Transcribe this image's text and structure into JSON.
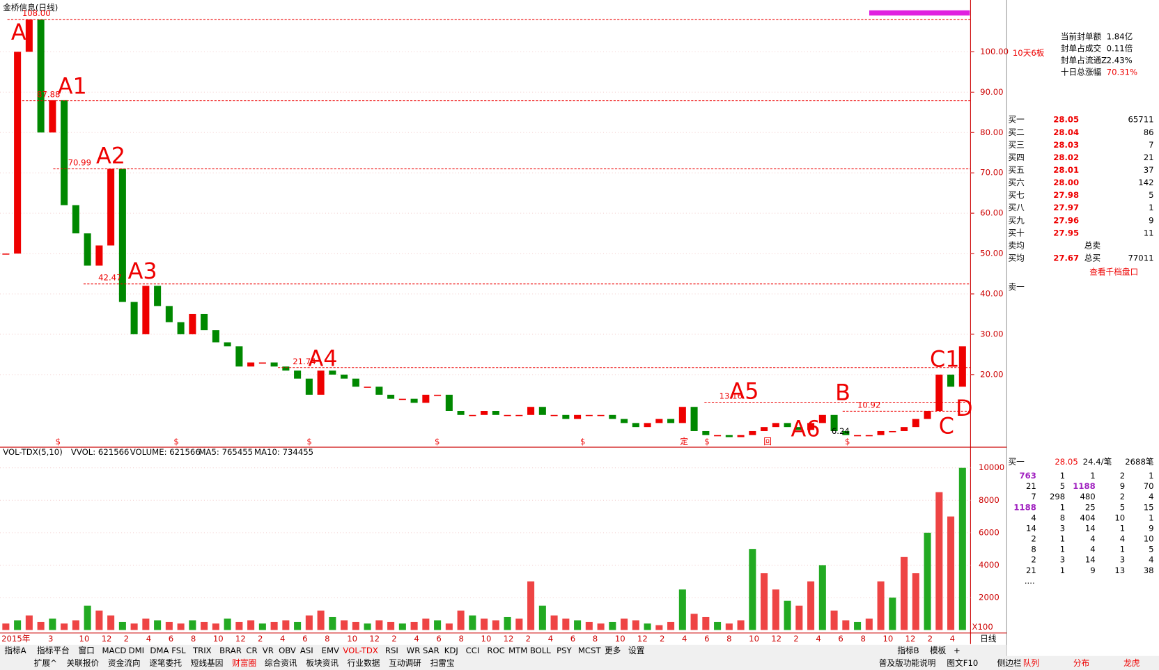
{
  "header": {
    "title": "金桥信息(日线)"
  },
  "price_chart": {
    "ylim": [
      2.75,
      112.84
    ],
    "yticks": [
      {
        "value": 20,
        "label": "20.00"
      },
      {
        "value": 30,
        "label": "30.00"
      },
      {
        "value": 40,
        "label": "40.00"
      },
      {
        "value": 50,
        "label": "50.00"
      },
      {
        "value": 60,
        "label": "60.00"
      },
      {
        "value": 70,
        "label": "70.00"
      },
      {
        "value": 80,
        "label": "80.00"
      },
      {
        "value": 90,
        "label": "90.00"
      },
      {
        "value": 100,
        "label": "100.00"
      }
    ],
    "values": [
      50,
      100,
      108,
      80,
      88,
      62,
      55,
      47,
      52,
      71,
      38,
      30,
      42,
      37,
      33,
      30,
      35,
      31,
      28,
      27,
      22,
      23,
      23,
      22,
      21,
      19,
      15,
      21,
      20,
      19,
      17,
      17,
      15,
      14,
      14,
      13,
      15,
      15,
      11,
      10,
      10,
      11,
      10,
      10,
      10,
      12,
      10,
      10,
      9,
      10,
      10,
      10,
      9,
      8,
      7,
      8,
      9,
      8,
      12,
      6,
      5,
      5,
      4.5,
      5,
      6,
      7,
      8,
      7,
      6.3,
      8,
      10,
      6,
      5,
      5,
      5,
      6,
      6,
      7,
      9,
      11,
      20,
      17,
      27
    ],
    "levels": [
      {
        "value": 108,
        "label": "108.00"
      },
      {
        "value": 87.88,
        "label": "87.88"
      },
      {
        "value": 70.99,
        "label": "70.99"
      },
      {
        "value": 42.47,
        "label": "42.47"
      },
      {
        "value": 21.74,
        "label": "21.74"
      },
      {
        "value": 13.16,
        "label": "13.16"
      },
      {
        "value": 10.92,
        "label": "10.92"
      }
    ],
    "annotations": [
      "A",
      "A1",
      "A2",
      "A3",
      "A4",
      "A5",
      "A6",
      "B",
      "C",
      "C1",
      "D"
    ],
    "low_label": {
      "value": 6.24,
      "label": "6.24"
    },
    "event_markers": [
      "$",
      "$",
      "$",
      "$",
      "$",
      "定",
      "$",
      "回",
      "$"
    ]
  },
  "volume_chart": {
    "header": [
      "VOL-TDX(5,10)",
      "VVOL: 621566",
      "VOLUME: 621566",
      "MA5: 765455",
      "MA10: 734455"
    ],
    "ylim": [
      0,
      11000
    ],
    "yticks": [
      2000,
      4000,
      6000,
      8000,
      10000
    ],
    "unit": "X100",
    "values": [
      400,
      600,
      900,
      500,
      700,
      400,
      600,
      1500,
      1200,
      900,
      500,
      400,
      700,
      600,
      500,
      400,
      600,
      500,
      400,
      700,
      500,
      600,
      400,
      500,
      600,
      500,
      900,
      1200,
      800,
      600,
      500,
      400,
      600,
      500,
      400,
      500,
      700,
      600,
      400,
      1200,
      900,
      700,
      600,
      800,
      700,
      3000,
      1500,
      900,
      700,
      600,
      500,
      400,
      500,
      700,
      600,
      400,
      300,
      500,
      2500,
      1000,
      800,
      500,
      400,
      600,
      5000,
      3500,
      2500,
      1800,
      1500,
      3000,
      4000,
      1200,
      600,
      500,
      700,
      3000,
      2000,
      4500,
      3500,
      6000,
      8500,
      7000,
      10000
    ]
  },
  "x_axis": {
    "labels": [
      "2015年",
      "3",
      "10",
      "12",
      "2",
      "4",
      "6",
      "8",
      "10",
      "12",
      "2",
      "4",
      "6",
      "8",
      "10",
      "12",
      "2",
      "4",
      "6",
      "8",
      "10",
      "12",
      "2",
      "4",
      "6",
      "8",
      "10",
      "12",
      "2",
      "4",
      "6",
      "8",
      "10",
      "12",
      "2",
      "4",
      "6",
      "8",
      "10",
      "12",
      "2",
      "4"
    ],
    "period": "日线"
  },
  "side_panel": {
    "badge": "10天6板",
    "info": [
      [
        "当前封单额",
        "1.84亿"
      ],
      [
        "封单占成交",
        "0.11倍"
      ],
      [
        "封单占流通Z",
        "2.43%"
      ],
      [
        "十日总涨幅",
        "70.31%"
      ]
    ],
    "order_book": [
      [
        "买一",
        "28.05",
        "65711"
      ],
      [
        "买二",
        "28.04",
        "86"
      ],
      [
        "买三",
        "28.03",
        "7"
      ],
      [
        "买四",
        "28.02",
        "21"
      ],
      [
        "买五",
        "28.01",
        "37"
      ],
      [
        "买六",
        "28.00",
        "142"
      ],
      [
        "买七",
        "27.98",
        "5"
      ],
      [
        "买八",
        "27.97",
        "1"
      ],
      [
        "买九",
        "27.96",
        "9"
      ],
      [
        "买十",
        "27.95",
        "11"
      ]
    ],
    "summary": [
      [
        "卖均",
        "",
        "总卖",
        ""
      ],
      [
        "买均",
        "27.67",
        "总买",
        "77011"
      ]
    ],
    "link": "查看千档盘口",
    "sell_one": "卖一",
    "tick_header": [
      "买一",
      "28.05",
      "24.4/笔",
      "2688笔"
    ],
    "tick_rows": [
      [
        "763",
        "1",
        "1",
        "2",
        "1"
      ],
      [
        "21",
        "5",
        "1188",
        "9",
        "70"
      ],
      [
        "7",
        "298",
        "480",
        "2",
        "4"
      ],
      [
        "1188",
        "1",
        "25",
        "5",
        "15"
      ],
      [
        "4",
        "8",
        "404",
        "10",
        "1"
      ],
      [
        "14",
        "3",
        "14",
        "1",
        "9"
      ],
      [
        "2",
        "1",
        "4",
        "4",
        "10"
      ],
      [
        "8",
        "1",
        "4",
        "1",
        "5"
      ],
      [
        "2",
        "3",
        "14",
        "3",
        "4"
      ],
      [
        "21",
        "1",
        "9",
        "13",
        "38"
      ]
    ],
    "more": "....",
    "tabs": [
      "队列",
      "分布",
      "龙虎"
    ]
  },
  "toolbar": {
    "row1": [
      "指标A",
      "指标平台",
      "窗口",
      "MACD",
      "DMI",
      "DMA",
      "FSL",
      "TRIX",
      "BRAR",
      "CR",
      "VR",
      "OBV",
      "ASI",
      "EMV",
      "VOL-TDX",
      "RSI",
      "WR",
      "SAR",
      "KDJ",
      "CCI",
      "ROC",
      "MTM",
      "BOLL",
      "PSY",
      "MCST",
      "更多",
      "设置"
    ],
    "row1_right": [
      "指标B",
      "模板",
      "+"
    ],
    "row2": [
      "扩展^",
      "关联报价",
      "资金流向",
      "逐笔委托",
      "短线基因",
      "财富圈",
      "综合资讯",
      "板块资讯",
      "行业数据",
      "互动调研",
      "扫雷宝"
    ],
    "row2_right": [
      "普及版功能说明",
      "图文F10",
      "侧边栏"
    ]
  }
}
